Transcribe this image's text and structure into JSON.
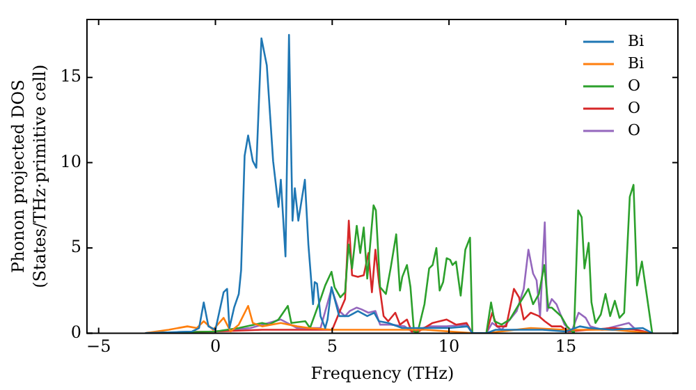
{
  "chart_data": {
    "type": "line",
    "xlabel": "Frequency (THz)",
    "ylabel": "Phonon projected DOS\n(States/THz·primitive cell)",
    "xlim": [
      -5.5,
      19.8
    ],
    "ylim": [
      0,
      18.4
    ],
    "xticks": [
      -5,
      0,
      5,
      10,
      15
    ],
    "yticks": [
      0,
      5,
      10,
      15
    ],
    "grid": false,
    "legend": "top right",
    "line_style": "solid",
    "series": [
      {
        "name": "Bi",
        "color": "#1f77b4",
        "x": [
          -3,
          -1,
          -0.7,
          -0.5,
          -0.3,
          0,
          0.35,
          0.5,
          0.6,
          0.8,
          1.0,
          1.1,
          1.25,
          1.4,
          1.6,
          1.75,
          1.97,
          2.2,
          2.47,
          2.7,
          2.8,
          3.0,
          3.15,
          3.3,
          3.4,
          3.55,
          3.83,
          3.98,
          4.18,
          4.25,
          4.35,
          4.5,
          4.7,
          4.8,
          4.97,
          5.3,
          5.7,
          6.1,
          6.5,
          6.8,
          7.0,
          7.4,
          8,
          9,
          10,
          10.8,
          11.0,
          11.6,
          12,
          13,
          14,
          15,
          15.6,
          16,
          17,
          18.3,
          18.7
        ],
        "values": [
          0,
          0.1,
          0.3,
          1.8,
          0.4,
          0.2,
          2.4,
          2.6,
          0.3,
          1.5,
          2.3,
          3.7,
          10.4,
          11.6,
          10.1,
          9.7,
          17.3,
          15.7,
          10.1,
          7.4,
          9.0,
          4.5,
          17.5,
          6.6,
          8.5,
          6.6,
          9.0,
          5.2,
          1.7,
          3.0,
          2.9,
          1.0,
          0.3,
          0.8,
          2.7,
          1.0,
          1.0,
          1.3,
          1.0,
          1.2,
          0.7,
          0.6,
          0.3,
          0.3,
          0.3,
          0.4,
          0,
          0,
          0.2,
          0.2,
          0.2,
          0.1,
          0.4,
          0.3,
          0.2,
          0.3,
          0
        ]
      },
      {
        "name": "Bi",
        "color": "#ff7f0e",
        "x": [
          -3,
          -2,
          -1.2,
          -0.8,
          -0.5,
          -0.1,
          0.35,
          0.65,
          1.0,
          1.4,
          1.6,
          2.0,
          2.8,
          3.5,
          4.0,
          5,
          7,
          9,
          11.0,
          11.6,
          13.5,
          15,
          17,
          18.7
        ],
        "values": [
          0,
          0.2,
          0.4,
          0.3,
          0.7,
          0.2,
          0.9,
          0.1,
          0.5,
          1.6,
          0.6,
          0.4,
          0.6,
          0.4,
          0.3,
          0.2,
          0.2,
          0.2,
          0,
          0,
          0.3,
          0.2,
          0.2,
          0
        ]
      },
      {
        "name": "O",
        "color": "#2ca02c",
        "x": [
          -3,
          0,
          1.0,
          2.0,
          2.3,
          2.7,
          3.1,
          3.25,
          3.85,
          4.05,
          4.5,
          4.7,
          4.97,
          5.1,
          5.35,
          5.55,
          5.7,
          5.85,
          6.05,
          6.2,
          6.35,
          6.5,
          6.77,
          6.87,
          7.05,
          7.3,
          7.5,
          7.74,
          7.9,
          8.0,
          8.2,
          8.35,
          8.5,
          8.65,
          8.95,
          9.15,
          9.3,
          9.46,
          9.6,
          9.75,
          9.9,
          10.05,
          10.15,
          10.3,
          10.5,
          10.7,
          10.9,
          11.0,
          11.6,
          11.8,
          11.95,
          12.25,
          12.6,
          13.0,
          13.4,
          13.6,
          13.85,
          14.08,
          14.25,
          14.4,
          14.8,
          15.05,
          15.35,
          15.53,
          15.68,
          15.8,
          15.98,
          16.1,
          16.27,
          16.5,
          16.7,
          16.9,
          17.1,
          17.3,
          17.5,
          17.74,
          17.9,
          18.05,
          18.26,
          18.47,
          18.7
        ],
        "values": [
          0,
          0.1,
          0.3,
          0.6,
          0.5,
          0.8,
          1.6,
          0.6,
          0.7,
          0.3,
          2.0,
          2.8,
          3.6,
          2.7,
          2.1,
          2.4,
          5.2,
          3.8,
          6.3,
          4.7,
          6.2,
          3.2,
          7.5,
          7.2,
          2.7,
          2.3,
          3.8,
          5.8,
          2.5,
          3.3,
          4.0,
          2.7,
          0.1,
          0,
          1.7,
          3.8,
          4.0,
          5.0,
          2.5,
          3.0,
          4.4,
          4.3,
          4.0,
          4.2,
          2.2,
          4.9,
          5.6,
          0,
          0,
          1.8,
          0.7,
          0.5,
          0.8,
          1.7,
          2.6,
          1.7,
          2.3,
          4.0,
          1.5,
          1.5,
          1.0,
          0.4,
          0,
          7.2,
          6.8,
          3.8,
          5.3,
          1.8,
          0.6,
          1.1,
          2.3,
          1.0,
          1.9,
          0.9,
          1.2,
          8.0,
          8.7,
          2.8,
          4.2,
          2.2,
          0
        ]
      },
      {
        "name": "O",
        "color": "#d62728",
        "x": [
          -3,
          0,
          2,
          4,
          5.0,
          5.3,
          5.55,
          5.71,
          5.85,
          6.1,
          6.35,
          6.55,
          6.7,
          6.85,
          7.0,
          7.2,
          7.4,
          7.7,
          7.9,
          8.2,
          8.4,
          8.7,
          9.3,
          9.9,
          10.3,
          10.75,
          11.0,
          11.6,
          11.85,
          12.05,
          12.45,
          12.78,
          13.0,
          13.2,
          13.5,
          13.85,
          14.1,
          14.4,
          14.8,
          15.1,
          16,
          17,
          18,
          18.7
        ],
        "values": [
          0,
          0.1,
          0.2,
          0.2,
          0.2,
          1.2,
          2.0,
          6.6,
          3.4,
          3.3,
          3.4,
          4.7,
          2.4,
          4.9,
          3.0,
          1.0,
          0.7,
          1.2,
          0.5,
          0.8,
          0.1,
          0.1,
          0.6,
          0.8,
          0.5,
          0.6,
          0,
          0,
          1.2,
          0.4,
          0.4,
          2.6,
          2.1,
          0.8,
          1.2,
          1.0,
          0.7,
          0.4,
          0.4,
          0.1,
          0.2,
          0.3,
          0.2,
          0
        ]
      },
      {
        "name": "O",
        "color": "#9467bd",
        "x": [
          -3,
          0,
          1.5,
          2.8,
          3.5,
          4.5,
          4.97,
          5.3,
          5.55,
          5.75,
          6.05,
          6.25,
          6.55,
          6.85,
          7.05,
          7.5,
          8.1,
          8.4,
          9.15,
          9.9,
          10.75,
          11.0,
          11.6,
          11.85,
          12.25,
          12.9,
          13.2,
          13.4,
          13.6,
          13.75,
          13.9,
          14.1,
          14.2,
          14.4,
          14.6,
          14.95,
          15.25,
          15.55,
          15.85,
          16.05,
          16.55,
          17.7,
          18.0,
          18.7
        ],
        "values": [
          0,
          0.1,
          0.3,
          0.8,
          0.3,
          0.3,
          2.6,
          1.3,
          1.0,
          1.3,
          1.5,
          1.4,
          1.2,
          1.3,
          0.5,
          0.5,
          0.4,
          0.1,
          0.4,
          0.4,
          0.5,
          0,
          0,
          0.6,
          0.2,
          1.3,
          2.6,
          4.9,
          3.5,
          3.1,
          1.0,
          6.5,
          1.3,
          2.0,
          1.7,
          0.5,
          0.1,
          1.2,
          0.9,
          0.4,
          0.2,
          0.6,
          0.2,
          0
        ]
      }
    ]
  }
}
